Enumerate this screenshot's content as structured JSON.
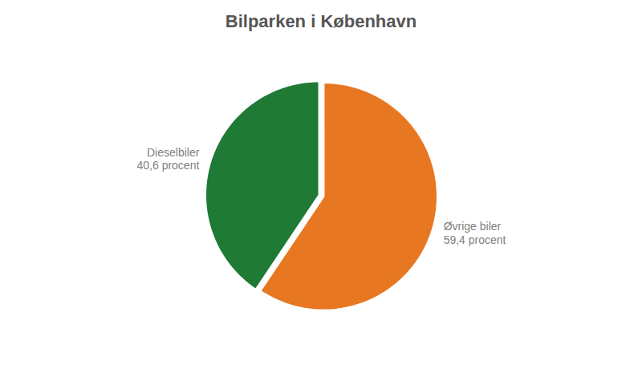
{
  "chart_data": {
    "type": "pie",
    "title": "Bilparken i København",
    "categories": [
      "Dieselbiler",
      "Øvrige biler"
    ],
    "values": [
      40.6,
      59.4
    ],
    "value_labels": [
      "40,6 procent",
      "59,4 procent"
    ],
    "colors": [
      "#1e7a34",
      "#e87722"
    ],
    "data_labels": true
  }
}
